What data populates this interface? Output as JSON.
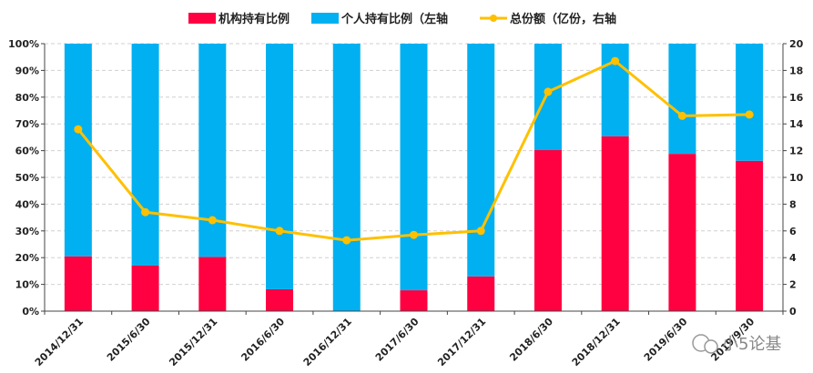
{
  "chart_data": {
    "type": "bar",
    "categories": [
      "2014/12/31",
      "2015/6/30",
      "2015/12/31",
      "2016/6/30",
      "2016/12/31",
      "2017/6/30",
      "2017/12/31",
      "2018/6/30",
      "2018/12/31",
      "2019/6/30",
      "2019/9/30"
    ],
    "series": [
      {
        "name": "机构持有比例",
        "kind": "bar",
        "axis": "left",
        "color": "#ff0040",
        "values": [
          20.5,
          17.0,
          20.3,
          8.2,
          0.0,
          7.8,
          13.0,
          60.2,
          65.4,
          58.8,
          56.2
        ]
      },
      {
        "name": "个人持有比例（左轴",
        "kind": "bar",
        "axis": "left",
        "color": "#00b0f0",
        "values": [
          79.5,
          83.0,
          79.7,
          91.8,
          100.0,
          92.2,
          87.0,
          39.8,
          34.6,
          41.2,
          43.8
        ]
      },
      {
        "name": "总份额（亿份，右轴",
        "kind": "line",
        "axis": "right",
        "color": "#ffc000",
        "values": [
          13.6,
          7.4,
          6.8,
          6.0,
          5.3,
          5.7,
          6.0,
          16.4,
          18.7,
          14.6,
          14.7
        ]
      }
    ],
    "stacked": true,
    "yleft": {
      "ylim": [
        0,
        100
      ],
      "ticks": [
        "0%",
        "10%",
        "20%",
        "30%",
        "40%",
        "50%",
        "60%",
        "70%",
        "80%",
        "90%",
        "100%"
      ]
    },
    "yright": {
      "ylim": [
        0,
        20
      ],
      "ticks": [
        "0",
        "2",
        "4",
        "6",
        "8",
        "10",
        "12",
        "14",
        "16",
        "18",
        "20"
      ]
    },
    "grid": true,
    "legend_position": "top"
  },
  "legend": {
    "institution": "机构持有比例",
    "individual": "个人持有比例（左轴",
    "total": "总份额（亿份，右轴"
  },
  "watermark": "小5论基"
}
